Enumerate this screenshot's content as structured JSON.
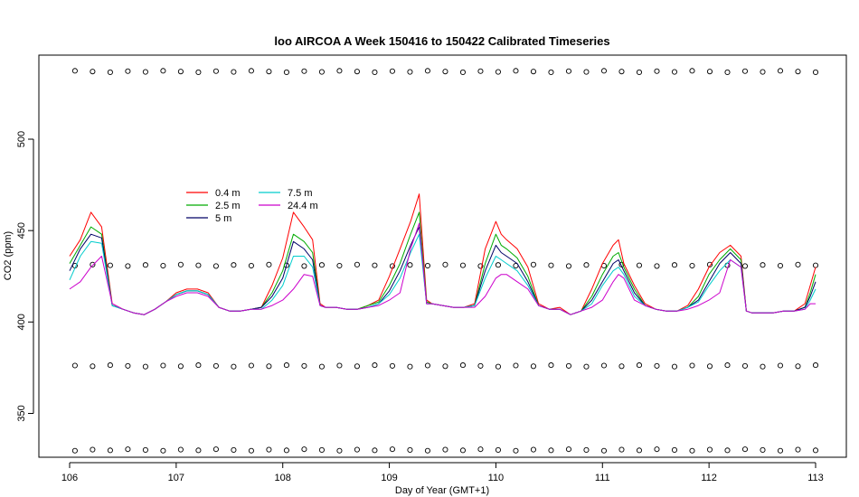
{
  "chart_data": {
    "type": "line",
    "title": "loo AIRCOA A  Week 150416 to 150422  Calibrated Timeseries",
    "xlabel": "Day of Year (GMT+1)",
    "ylabel": "CO2 (ppm)",
    "xlim": [
      106,
      113
    ],
    "ylim": [
      328,
      544
    ],
    "xticks": [
      106,
      107,
      108,
      109,
      110,
      111,
      112,
      113
    ],
    "yticks": [
      350,
      400,
      450,
      500
    ],
    "legend_position": "upper-left",
    "grid": false,
    "reference_levels": [
      537,
      431,
      376,
      330
    ],
    "series": [
      {
        "name": "0.4 m",
        "color": "#ff0000",
        "x": [
          106.0,
          106.1,
          106.2,
          106.3,
          106.4,
          106.5,
          106.6,
          106.7,
          106.8,
          106.9,
          107.0,
          107.1,
          107.2,
          107.3,
          107.4,
          107.5,
          107.6,
          107.7,
          107.8,
          107.9,
          108.0,
          108.1,
          108.2,
          108.28,
          108.35,
          108.4,
          108.5,
          108.6,
          108.7,
          108.8,
          108.9,
          109.0,
          109.1,
          109.2,
          109.28,
          109.35,
          109.4,
          109.5,
          109.6,
          109.7,
          109.8,
          109.9,
          110.0,
          110.05,
          110.1,
          110.2,
          110.3,
          110.4,
          110.5,
          110.6,
          110.7,
          110.8,
          110.9,
          111.0,
          111.1,
          111.15,
          111.2,
          111.3,
          111.4,
          111.5,
          111.6,
          111.7,
          111.8,
          111.9,
          112.0,
          112.1,
          112.2,
          112.3,
          112.35,
          112.4,
          112.5,
          112.6,
          112.7,
          112.8,
          112.9,
          112.95,
          113.0
        ],
        "y": [
          436,
          445,
          460,
          452,
          410,
          407,
          405,
          404,
          407,
          411,
          416,
          418,
          418,
          416,
          408,
          406,
          406,
          407,
          408,
          420,
          435,
          460,
          452,
          445,
          410,
          408,
          408,
          407,
          407,
          409,
          412,
          425,
          440,
          455,
          470,
          412,
          410,
          409,
          408,
          408,
          410,
          440,
          455,
          448,
          445,
          440,
          430,
          410,
          407,
          408,
          404,
          406,
          418,
          432,
          442,
          445,
          432,
          420,
          410,
          407,
          406,
          406,
          409,
          418,
          430,
          438,
          442,
          436,
          406,
          405,
          405,
          405,
          406,
          406,
          410,
          420,
          430
        ]
      },
      {
        "name": "2.5 m",
        "color": "#00aa00",
        "x": [
          106.0,
          106.1,
          106.2,
          106.3,
          106.4,
          106.5,
          106.6,
          106.7,
          106.8,
          106.9,
          107.0,
          107.1,
          107.2,
          107.3,
          107.4,
          107.5,
          107.6,
          107.7,
          107.8,
          107.9,
          108.0,
          108.1,
          108.2,
          108.28,
          108.35,
          108.4,
          108.5,
          108.6,
          108.7,
          108.8,
          108.9,
          109.0,
          109.1,
          109.2,
          109.28,
          109.35,
          109.4,
          109.5,
          109.6,
          109.7,
          109.8,
          109.9,
          110.0,
          110.05,
          110.1,
          110.2,
          110.3,
          110.4,
          110.5,
          110.6,
          110.7,
          110.8,
          110.9,
          111.0,
          111.1,
          111.15,
          111.2,
          111.3,
          111.4,
          111.5,
          111.6,
          111.7,
          111.8,
          111.9,
          112.0,
          112.1,
          112.2,
          112.3,
          112.35,
          112.4,
          112.5,
          112.6,
          112.7,
          112.8,
          112.9,
          112.95,
          113.0
        ],
        "y": [
          432,
          442,
          452,
          448,
          409,
          407,
          405,
          404,
          407,
          411,
          415,
          417,
          417,
          415,
          408,
          406,
          406,
          407,
          408,
          416,
          428,
          448,
          444,
          438,
          409,
          408,
          408,
          407,
          407,
          409,
          411,
          420,
          432,
          448,
          460,
          411,
          410,
          409,
          408,
          408,
          409,
          432,
          448,
          442,
          440,
          435,
          425,
          409,
          407,
          407,
          404,
          406,
          414,
          426,
          436,
          438,
          430,
          418,
          409,
          407,
          406,
          406,
          408,
          414,
          426,
          434,
          440,
          434,
          406,
          405,
          405,
          405,
          406,
          406,
          408,
          416,
          426
        ]
      },
      {
        "name": "5 m",
        "color": "#000066",
        "x": [
          106.0,
          106.1,
          106.2,
          106.3,
          106.4,
          106.5,
          106.6,
          106.7,
          106.8,
          106.9,
          107.0,
          107.1,
          107.2,
          107.3,
          107.4,
          107.5,
          107.6,
          107.7,
          107.8,
          107.9,
          108.0,
          108.1,
          108.2,
          108.28,
          108.35,
          108.4,
          108.5,
          108.6,
          108.7,
          108.8,
          108.9,
          109.0,
          109.1,
          109.2,
          109.28,
          109.35,
          109.4,
          109.5,
          109.6,
          109.7,
          109.8,
          109.9,
          110.0,
          110.05,
          110.1,
          110.2,
          110.3,
          110.4,
          110.5,
          110.6,
          110.7,
          110.8,
          110.9,
          111.0,
          111.1,
          111.15,
          111.2,
          111.3,
          111.4,
          111.5,
          111.6,
          111.7,
          111.8,
          111.9,
          112.0,
          112.1,
          112.2,
          112.3,
          112.35,
          112.4,
          112.5,
          112.6,
          112.7,
          112.8,
          112.9,
          112.95,
          113.0
        ],
        "y": [
          428,
          440,
          448,
          446,
          409,
          407,
          405,
          404,
          407,
          411,
          415,
          417,
          417,
          415,
          408,
          406,
          406,
          407,
          408,
          414,
          424,
          444,
          440,
          434,
          409,
          408,
          408,
          407,
          407,
          408,
          410,
          417,
          428,
          442,
          452,
          410,
          410,
          409,
          408,
          408,
          409,
          428,
          442,
          438,
          436,
          432,
          422,
          409,
          407,
          407,
          404,
          406,
          412,
          422,
          432,
          434,
          428,
          416,
          409,
          407,
          406,
          406,
          408,
          412,
          422,
          432,
          438,
          432,
          406,
          405,
          405,
          405,
          406,
          406,
          408,
          414,
          422
        ]
      },
      {
        "name": "7.5 m",
        "color": "#00cccc",
        "x": [
          106.0,
          106.1,
          106.2,
          106.3,
          106.4,
          106.5,
          106.6,
          106.7,
          106.8,
          106.9,
          107.0,
          107.1,
          107.2,
          107.3,
          107.4,
          107.5,
          107.6,
          107.7,
          107.8,
          107.9,
          108.0,
          108.1,
          108.2,
          108.28,
          108.35,
          108.4,
          108.5,
          108.6,
          108.7,
          108.8,
          108.9,
          109.0,
          109.1,
          109.2,
          109.28,
          109.35,
          109.4,
          109.5,
          109.6,
          109.7,
          109.8,
          109.9,
          110.0,
          110.05,
          110.1,
          110.2,
          110.3,
          110.4,
          110.5,
          110.6,
          110.7,
          110.8,
          110.9,
          111.0,
          111.1,
          111.15,
          111.2,
          111.3,
          111.4,
          111.5,
          111.6,
          111.7,
          111.8,
          111.9,
          112.0,
          112.1,
          112.2,
          112.3,
          112.35,
          112.4,
          112.5,
          112.6,
          112.7,
          112.8,
          112.9,
          112.95,
          113.0
        ],
        "y": [
          423,
          436,
          444,
          443,
          409,
          407,
          405,
          404,
          407,
          411,
          415,
          417,
          417,
          415,
          408,
          406,
          406,
          407,
          407,
          412,
          420,
          436,
          436,
          430,
          409,
          408,
          408,
          407,
          407,
          408,
          410,
          415,
          424,
          438,
          448,
          410,
          410,
          409,
          408,
          408,
          409,
          424,
          436,
          434,
          432,
          428,
          420,
          409,
          407,
          407,
          404,
          406,
          410,
          420,
          428,
          430,
          426,
          414,
          409,
          407,
          406,
          406,
          408,
          411,
          420,
          428,
          434,
          430,
          406,
          405,
          405,
          405,
          406,
          406,
          407,
          412,
          418
        ]
      },
      {
        "name": "24.4 m",
        "color": "#cc00cc",
        "x": [
          106.0,
          106.1,
          106.2,
          106.3,
          106.4,
          106.5,
          106.6,
          106.7,
          106.8,
          106.9,
          107.0,
          107.1,
          107.2,
          107.3,
          107.4,
          107.5,
          107.6,
          107.7,
          107.8,
          107.9,
          108.0,
          108.1,
          108.2,
          108.28,
          108.35,
          108.4,
          108.5,
          108.6,
          108.7,
          108.8,
          108.9,
          109.0,
          109.1,
          109.2,
          109.28,
          109.35,
          109.4,
          109.5,
          109.6,
          109.7,
          109.8,
          109.9,
          110.0,
          110.05,
          110.1,
          110.2,
          110.3,
          110.4,
          110.5,
          110.6,
          110.7,
          110.8,
          110.9,
          111.0,
          111.1,
          111.15,
          111.2,
          111.3,
          111.4,
          111.5,
          111.6,
          111.7,
          111.8,
          111.9,
          112.0,
          112.1,
          112.2,
          112.3,
          112.35,
          112.4,
          112.5,
          112.6,
          112.7,
          112.8,
          112.9,
          112.95,
          113.0
        ],
        "y": [
          418,
          422,
          430,
          436,
          410,
          407,
          405,
          404,
          407,
          411,
          414,
          416,
          416,
          414,
          408,
          406,
          406,
          407,
          407,
          409,
          412,
          418,
          426,
          425,
          409,
          408,
          408,
          407,
          407,
          408,
          409,
          412,
          416,
          440,
          454,
          410,
          410,
          409,
          408,
          408,
          408,
          414,
          424,
          426,
          426,
          422,
          418,
          409,
          407,
          407,
          404,
          406,
          408,
          412,
          422,
          426,
          424,
          412,
          409,
          407,
          406,
          406,
          407,
          409,
          412,
          416,
          434,
          430,
          406,
          405,
          405,
          405,
          406,
          406,
          407,
          410,
          410
        ]
      }
    ]
  }
}
